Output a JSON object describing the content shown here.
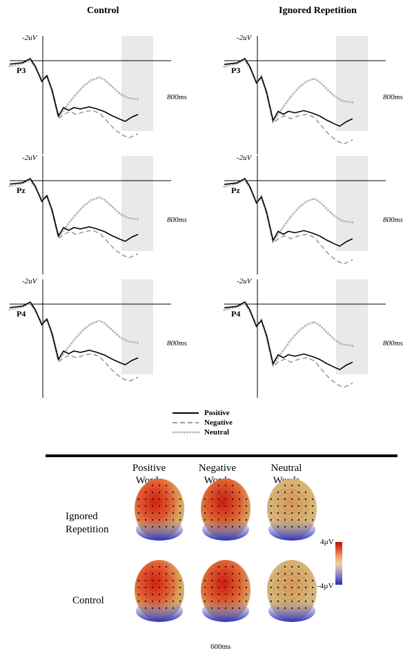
{
  "columns": [
    {
      "title": "Control"
    },
    {
      "title": "Ignored Repetition"
    }
  ],
  "erp": {
    "amplitude_label": "-2uV",
    "time_label": "800ms",
    "electrodes": [
      "P3",
      "Pz",
      "P4"
    ],
    "legend": [
      {
        "label": "Positive",
        "style": "solid",
        "color": "#000000"
      },
      {
        "label": "Negative",
        "style": "dashed",
        "color": "#9a9a9a"
      },
      {
        "label": "Neutral",
        "style": "dotted",
        "color": "#b4b4b4"
      }
    ]
  },
  "topo": {
    "headers": [
      {
        "line1": "Positive",
        "line2": "Words"
      },
      {
        "line1": "Negative",
        "line2": "Words"
      },
      {
        "line1": "Neutral",
        "line2": "Words"
      }
    ],
    "rows": [
      {
        "line1": "Ignored",
        "line2": "Repetition"
      },
      {
        "line1": "Control",
        "line2": ""
      }
    ],
    "scale_max": "4µV",
    "scale_min": "-4µV",
    "time": "600ms"
  }
}
